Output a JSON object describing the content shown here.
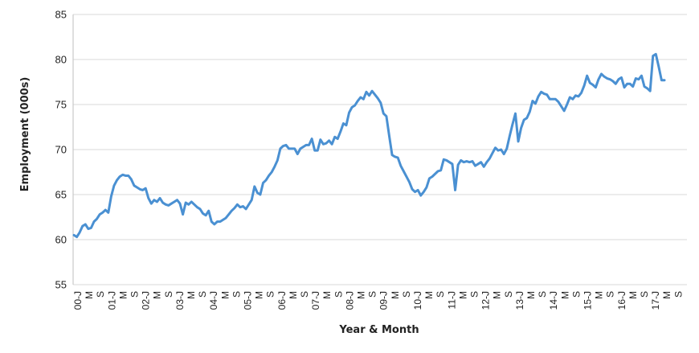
{
  "chart_data": {
    "type": "line",
    "title": "",
    "xlabel": "Year & Month",
    "ylabel": "Employment (000s)",
    "ylim": [
      55,
      85
    ],
    "y_ticks": [
      "55",
      "60",
      "65",
      "70",
      "75",
      "80",
      "85"
    ],
    "grid": "horizontal",
    "line_color": "#4a90d2",
    "x_tick_labels": [
      "00-J",
      "M",
      "S",
      "01-J",
      "M",
      "S",
      "02-J",
      "M",
      "S",
      "03-J",
      "M",
      "S",
      "04-J",
      "M",
      "S",
      "05-J",
      "M",
      "S",
      "06-J",
      "M",
      "S",
      "07-J",
      "M",
      "S",
      "08-J",
      "M",
      "S",
      "09-J",
      "M",
      "S",
      "10-J",
      "M",
      "S",
      "11-J",
      "M",
      "S",
      "12-J",
      "M",
      "S",
      "13-J",
      "M",
      "S",
      "14-J",
      "M",
      "S",
      "15-J",
      "M",
      "S",
      "16-J",
      "M",
      "S",
      "17-J",
      "M",
      "S"
    ],
    "series": [
      {
        "values": [
          60.5,
          60.3,
          60.8,
          61.5,
          61.7,
          61.2,
          61.3,
          62.0,
          62.3,
          62.8,
          63.0,
          63.3,
          63.0,
          64.8,
          66.0,
          66.6,
          67.0,
          67.2,
          67.1,
          67.1,
          66.7,
          66.0,
          65.8,
          65.6,
          65.5,
          65.7,
          64.6,
          64.0,
          64.4,
          64.2,
          64.6,
          64.1,
          63.9,
          63.8,
          64.0,
          64.2,
          64.4,
          64.0,
          62.8,
          64.1,
          63.9,
          64.2,
          63.9,
          63.6,
          63.4,
          62.9,
          62.7,
          63.2,
          62.0,
          61.7,
          62.0,
          62.0,
          62.2,
          62.4,
          62.8,
          63.2,
          63.5,
          63.9,
          63.6,
          63.7,
          63.4,
          63.9,
          64.4,
          65.9,
          65.2,
          65.0,
          66.3,
          66.6,
          67.1,
          67.5,
          68.1,
          68.8,
          70.1,
          70.4,
          70.5,
          70.1,
          70.1,
          70.1,
          69.5,
          70.1,
          70.3,
          70.5,
          70.5,
          71.2,
          69.9,
          69.9,
          71.1,
          70.6,
          70.7,
          71.0,
          70.6,
          71.4,
          71.2,
          72.0,
          72.9,
          72.7,
          74.1,
          74.7,
          74.9,
          75.4,
          75.8,
          75.6,
          76.4,
          76.0,
          76.5,
          76.1,
          75.7,
          75.2,
          74.0,
          73.7,
          71.5,
          69.4,
          69.2,
          69.1,
          68.2,
          67.6,
          67.0,
          66.4,
          65.6,
          65.3,
          65.5,
          64.9,
          65.3,
          65.8,
          66.8,
          67.0,
          67.3,
          67.6,
          67.7,
          68.9,
          68.8,
          68.6,
          68.4,
          65.5,
          68.3,
          68.8,
          68.6,
          68.7,
          68.6,
          68.7,
          68.2,
          68.4,
          68.6,
          68.1,
          68.6,
          69.0,
          69.6,
          70.2,
          69.9,
          70.0,
          69.5,
          70.1,
          71.5,
          72.8,
          74.0,
          70.9,
          72.4,
          73.3,
          73.5,
          74.2,
          75.4,
          75.1,
          75.9,
          76.4,
          76.2,
          76.1,
          75.6,
          75.6,
          75.6,
          75.3,
          74.8,
          74.3,
          75.0,
          75.8,
          75.6,
          76.0,
          75.9,
          76.3,
          77.1,
          78.2,
          77.4,
          77.2,
          76.9,
          77.8,
          78.4,
          78.1,
          77.9,
          77.8,
          77.6,
          77.3,
          77.8,
          78.0,
          76.9,
          77.3,
          77.3,
          77.0,
          77.9,
          77.8,
          78.2,
          77.0,
          76.8,
          76.5,
          80.4,
          80.6,
          79.2,
          77.7,
          77.7
        ]
      }
    ]
  }
}
